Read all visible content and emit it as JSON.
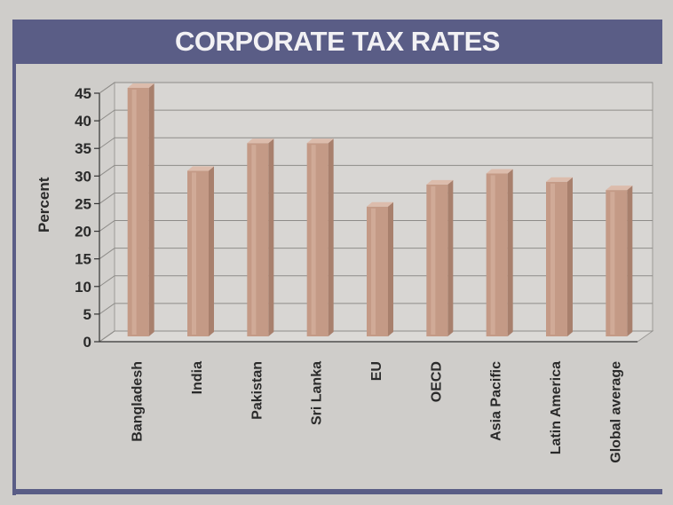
{
  "chart_data": {
    "type": "bar",
    "title": "CORPORATE TAX RATES",
    "xlabel": "",
    "ylabel": "Percent",
    "categories": [
      "Bangladesh",
      "India",
      "Pakistan",
      "Sri Lanka",
      "EU",
      "OECD",
      "Asia Pacific",
      "Latin America",
      "Global average"
    ],
    "values": [
      45,
      30,
      35,
      35,
      23.5,
      27.5,
      29.5,
      28,
      26.5
    ],
    "ylim": [
      0,
      45
    ],
    "yticks": [
      "0",
      "5",
      "10",
      "15",
      "20",
      "25",
      "30",
      "35",
      "40",
      "45"
    ],
    "grid": true,
    "bar_color": "#c49a86",
    "title_bar_color": "#5a5d86"
  }
}
